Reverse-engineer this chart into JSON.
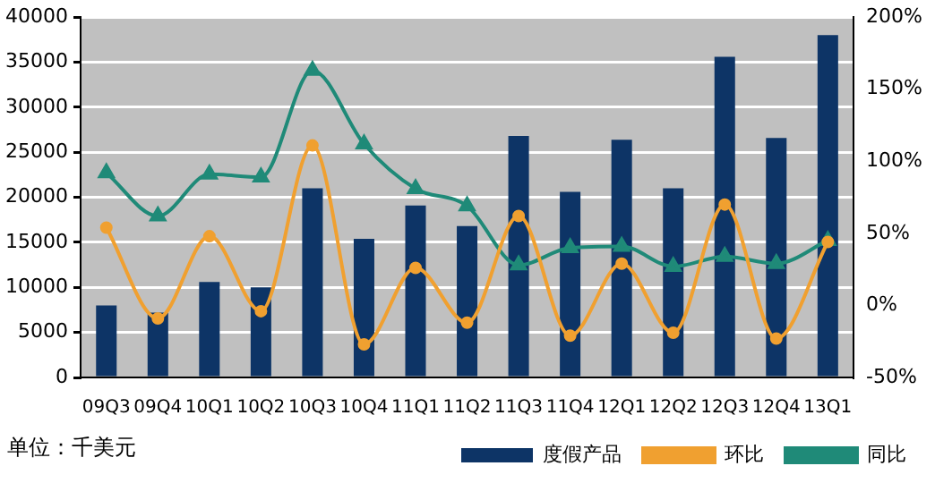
{
  "chart_data": {
    "type": "bar",
    "categories": [
      "09Q3",
      "09Q4",
      "10Q1",
      "10Q2",
      "10Q3",
      "10Q4",
      "11Q1",
      "11Q2",
      "11Q3",
      "11Q4",
      "12Q1",
      "12Q2",
      "12Q3",
      "12Q4",
      "13Q1"
    ],
    "series": [
      {
        "name": "度假产品",
        "color": "#0d3466",
        "values": [
          8000,
          7200,
          10600,
          10000,
          21000,
          15400,
          19100,
          16800,
          26800,
          20600,
          26400,
          21000,
          35600,
          26600,
          38000
        ]
      },
      {
        "name": "环比",
        "type": "line",
        "axis": "y2",
        "marker": "circle",
        "color": "#f0a030",
        "values": [
          54,
          -9,
          48,
          -4,
          111,
          -27,
          26,
          -12,
          62,
          -21,
          29,
          -19,
          70,
          -23,
          44
        ]
      },
      {
        "name": "同比",
        "type": "line",
        "axis": "y2",
        "marker": "triangle",
        "color": "#1f8a78",
        "values": [
          92,
          62,
          91,
          89,
          163,
          112,
          81,
          69,
          28,
          40,
          41,
          27,
          34,
          29,
          45
        ]
      }
    ],
    "ylim": [
      0,
      40000
    ],
    "yticks": [
      0,
      5000,
      10000,
      15000,
      20000,
      25000,
      30000,
      35000,
      40000
    ],
    "y2lim": [
      -50,
      200
    ],
    "y2ticks": [
      {
        "value": -50,
        "label": "-50%"
      },
      {
        "value": 0,
        "label": "0%"
      },
      {
        "value": 50,
        "label": "50%"
      },
      {
        "value": 100,
        "label": "100%"
      },
      {
        "value": 150,
        "label": "150%"
      },
      {
        "value": 200,
        "label": "200%"
      }
    ],
    "grid": "y",
    "legend": "bottom",
    "annotations": [
      "单位：千美元"
    ]
  }
}
